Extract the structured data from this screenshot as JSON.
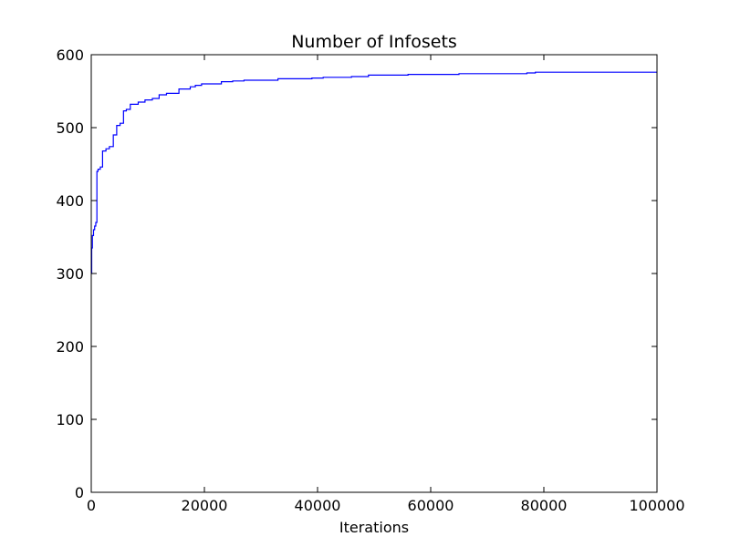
{
  "chart_data": {
    "type": "line",
    "title": "Number of Infosets",
    "xlabel": "Iterations",
    "ylabel": "",
    "xlim": [
      0,
      100000
    ],
    "ylim": [
      0,
      600
    ],
    "xticks": [
      0,
      20000,
      40000,
      60000,
      80000,
      100000
    ],
    "yticks": [
      0,
      100,
      200,
      300,
      400,
      500,
      600
    ],
    "grid": false,
    "series": [
      {
        "color": "#0000ff",
        "step": true,
        "x": [
          0,
          80,
          200,
          400,
          600,
          800,
          1000,
          1200,
          1600,
          2000,
          2600,
          3200,
          3900,
          4500,
          5100,
          5700,
          6200,
          6900,
          8300,
          9500,
          10800,
          12000,
          13300,
          15500,
          17500,
          18400,
          19500,
          23000,
          25000,
          27000,
          33000,
          39000,
          41000,
          46000,
          49000,
          56000,
          65000,
          77000,
          78500,
          100000
        ],
        "y": [
          300,
          335,
          352,
          360,
          365,
          370,
          440,
          443,
          446,
          468,
          471,
          474,
          490,
          503,
          506,
          523,
          525,
          532,
          535,
          538,
          540,
          545,
          547,
          553,
          556,
          558,
          560,
          563,
          564,
          565,
          567,
          568,
          569,
          570,
          572,
          573,
          574,
          575,
          576,
          576
        ]
      }
    ]
  }
}
